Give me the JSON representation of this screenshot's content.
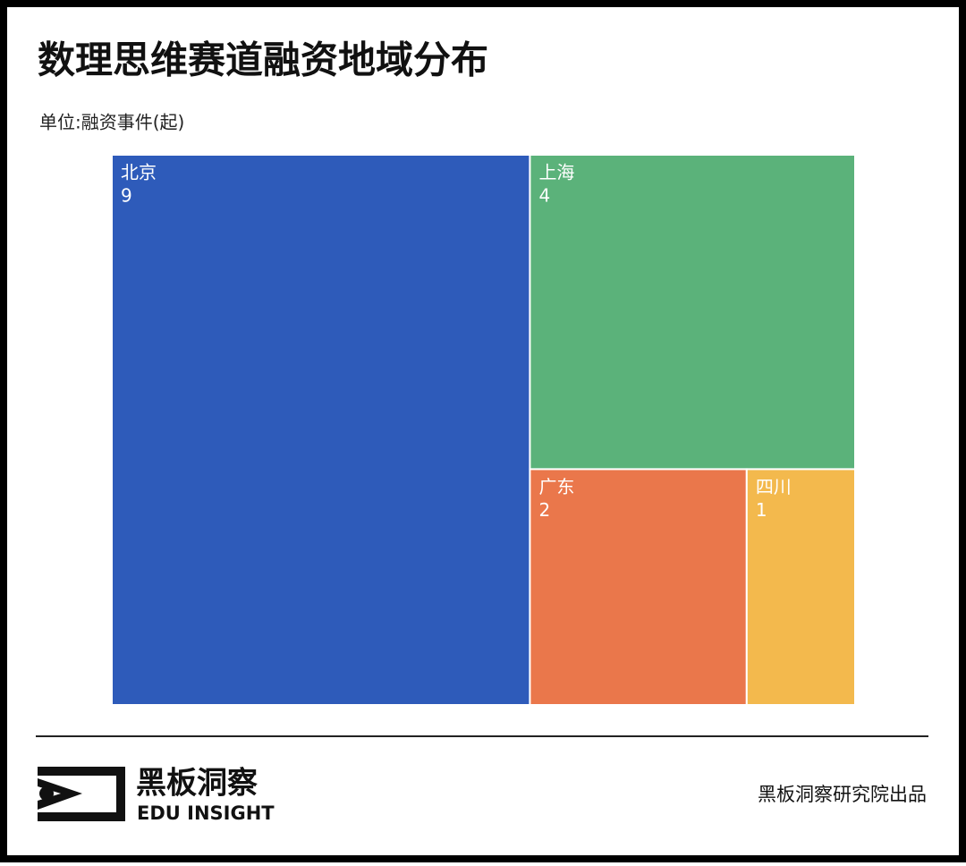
{
  "chart_data": {
    "type": "treemap",
    "title": "数理思维赛道融资地域分布",
    "subtitle": "单位:融资事件(起)",
    "categories": [
      "北京",
      "上海",
      "广东",
      "四川"
    ],
    "values": [
      9,
      4,
      2,
      1
    ],
    "colors": [
      "#2e5bba",
      "#5bb27a",
      "#ea774b",
      "#f3b94d"
    ]
  },
  "footer": {
    "brand": "黑板洞察",
    "brand_en": "EDU INSIGHT",
    "credit": "黑板洞察研究院出品"
  }
}
